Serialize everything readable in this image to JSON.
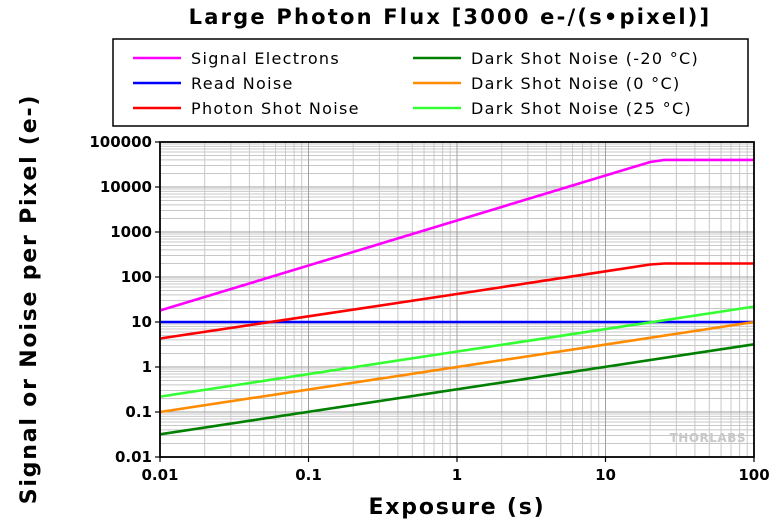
{
  "chart_data": {
    "type": "line",
    "title": "Large Photon Flux [3000 e-/(s•pixel)]",
    "xlabel": "Exposure (s)",
    "ylabel": "Signal or Noise per Pixel (e-)",
    "xscale": "log",
    "yscale": "log",
    "xlim": [
      0.01,
      100
    ],
    "ylim": [
      0.01,
      100000
    ],
    "xticks": [
      {
        "value": 0.01,
        "label": "0.01"
      },
      {
        "value": 0.1,
        "label": "0.1"
      },
      {
        "value": 1,
        "label": "1"
      },
      {
        "value": 10,
        "label": "10"
      },
      {
        "value": 100,
        "label": "100"
      }
    ],
    "yticks": [
      {
        "value": 0.01,
        "label": "0.01"
      },
      {
        "value": 0.1,
        "label": "0.1"
      },
      {
        "value": 1,
        "label": "1"
      },
      {
        "value": 10,
        "label": "10"
      },
      {
        "value": 100,
        "label": "100"
      },
      {
        "value": 1000,
        "label": "1000"
      },
      {
        "value": 10000,
        "label": "10000"
      },
      {
        "value": 100000,
        "label": "100000"
      }
    ],
    "grid": true,
    "legend_position": "top",
    "watermark": "THORLABS",
    "series": [
      {
        "name": "Signal Electrons",
        "color": "#ff00ff",
        "points": [
          [
            0.01,
            18
          ],
          [
            0.1,
            180
          ],
          [
            1,
            1800
          ],
          [
            10,
            18000
          ],
          [
            20,
            36000
          ],
          [
            25,
            40000
          ],
          [
            100,
            40000
          ]
        ]
      },
      {
        "name": "Read Noise",
        "color": "#0000ff",
        "points": [
          [
            0.01,
            10
          ],
          [
            100,
            10
          ]
        ]
      },
      {
        "name": "Photon Shot Noise",
        "color": "#ff0000",
        "points": [
          [
            0.01,
            4.3
          ],
          [
            0.1,
            13.4
          ],
          [
            1,
            42
          ],
          [
            10,
            134
          ],
          [
            20,
            190
          ],
          [
            25,
            200
          ],
          [
            100,
            200
          ]
        ]
      },
      {
        "name": "Dark Shot Noise (-20 °C)",
        "color": "#008000",
        "points": [
          [
            0.01,
            0.032
          ],
          [
            100,
            3.2
          ]
        ]
      },
      {
        "name": "Dark Shot Noise (0 °C)",
        "color": "#ff8c00",
        "points": [
          [
            0.01,
            0.1
          ],
          [
            100,
            10
          ]
        ]
      },
      {
        "name": "Dark Shot Noise (25 °C)",
        "color": "#33ff33",
        "points": [
          [
            0.01,
            0.22
          ],
          [
            100,
            22
          ]
        ]
      }
    ]
  }
}
